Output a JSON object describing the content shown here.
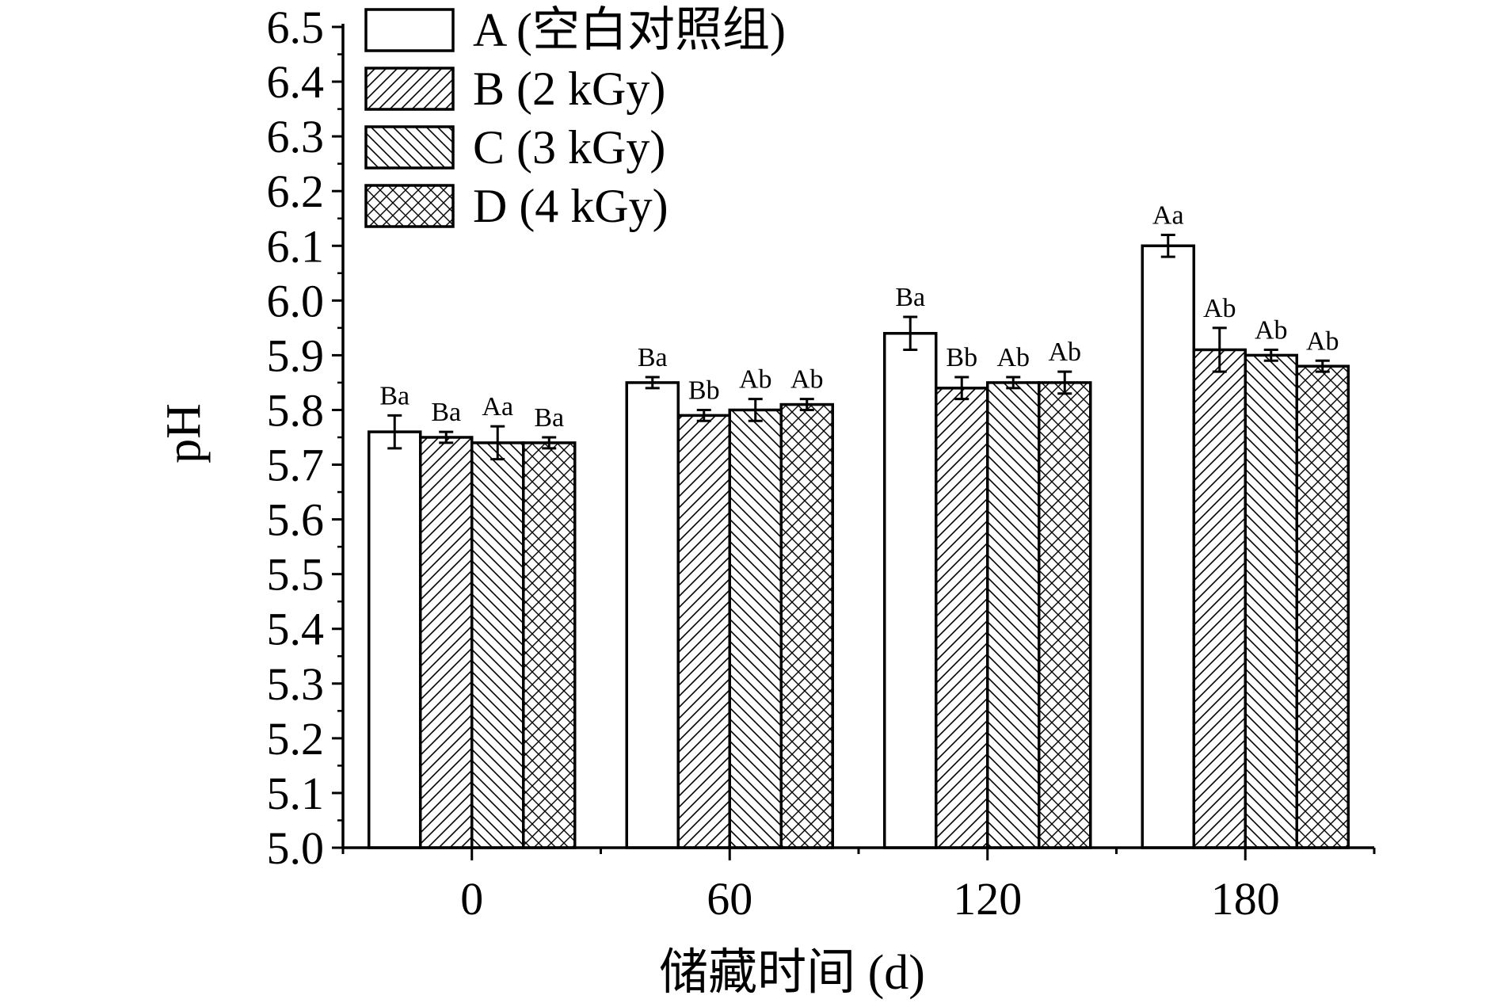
{
  "chart_data": {
    "type": "bar",
    "title": "",
    "xlabel": "储藏时间 (d)",
    "ylabel": "pH",
    "ylim": [
      5.0,
      6.5
    ],
    "ytick_step": 0.1,
    "y_tick_labels": [
      "5.0",
      "5.1",
      "5.2",
      "5.3",
      "5.4",
      "5.5",
      "5.6",
      "5.7",
      "5.8",
      "5.9",
      "6.0",
      "6.1",
      "6.2",
      "6.3",
      "6.4",
      "6.5"
    ],
    "categories": [
      "0",
      "60",
      "120",
      "180"
    ],
    "legend_position": "top-left",
    "grid": false,
    "series": [
      {
        "name": "A (空白对照组)",
        "pattern": "none",
        "values": [
          5.76,
          5.85,
          5.94,
          6.1
        ],
        "errors": [
          0.03,
          0.01,
          0.03,
          0.02
        ],
        "labels": [
          "Ba",
          "Ba",
          "Ba",
          "Aa"
        ]
      },
      {
        "name": "B (2 kGy)",
        "pattern": "forward-diagonal",
        "values": [
          5.75,
          5.79,
          5.84,
          5.91
        ],
        "errors": [
          0.01,
          0.01,
          0.02,
          0.04
        ],
        "labels": [
          "Ba",
          "Bb",
          "Bb",
          "Ab"
        ]
      },
      {
        "name": "C (3 kGy)",
        "pattern": "back-diagonal",
        "values": [
          5.74,
          5.8,
          5.85,
          5.9
        ],
        "errors": [
          0.03,
          0.02,
          0.01,
          0.01
        ],
        "labels": [
          "Aa",
          "Ab",
          "Ab",
          "Ab"
        ]
      },
      {
        "name": "D (4 kGy)",
        "pattern": "crosshatch",
        "values": [
          5.74,
          5.81,
          5.85,
          5.88
        ],
        "errors": [
          0.01,
          0.01,
          0.02,
          0.01
        ],
        "labels": [
          "Ba",
          "Ab",
          "Ab",
          "Ab"
        ]
      }
    ]
  }
}
